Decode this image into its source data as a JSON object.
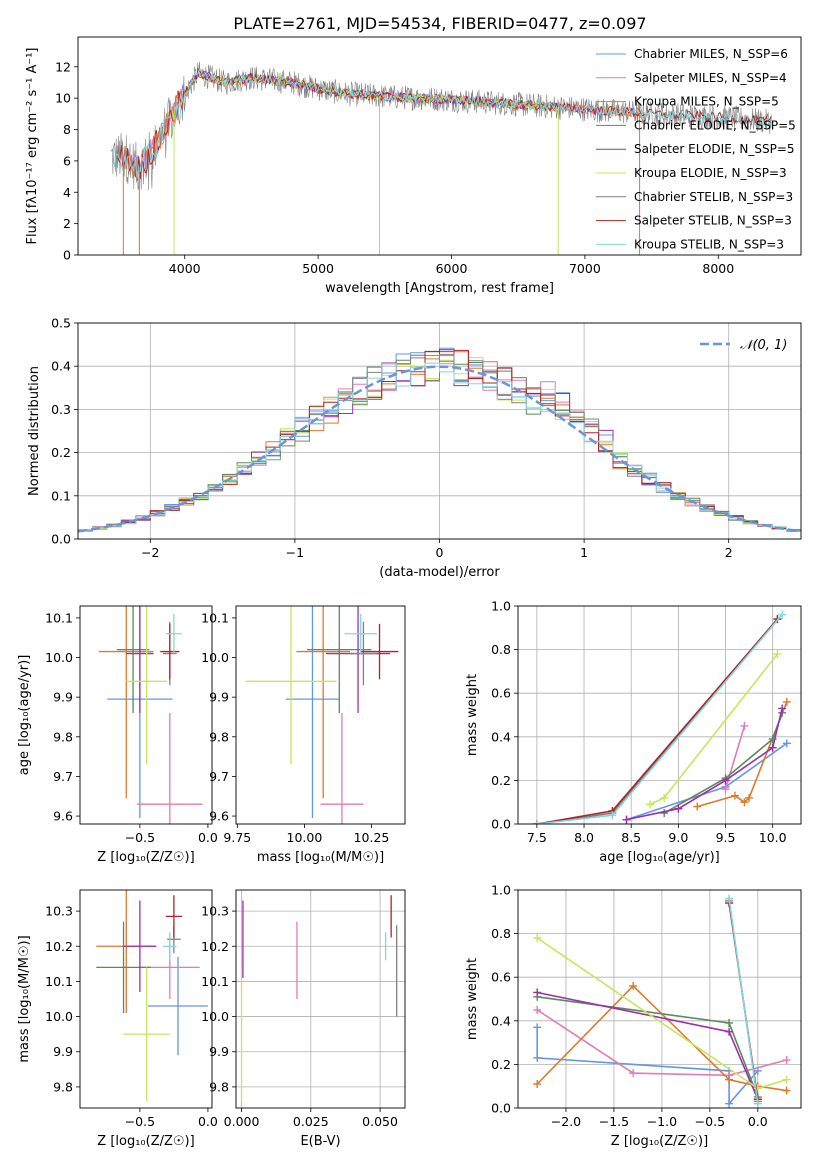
{
  "figure_title": "PLATE=2761, MJD=54534, FIBERID=0477, z=0.097",
  "colors": {
    "chabrier_miles": "#6495ed",
    "salpeter_miles": "#e57ab8",
    "kroupa_miles": "#e0782a",
    "chabrier_elodie": "#5a8a5a",
    "salpeter_elodie": "#9b2fae",
    "kroupa_elodie": "#c7e65a",
    "chabrier_stelib": "#808080",
    "salpeter_stelib": "#b22222",
    "kroupa_stelib": "#7fd8e0",
    "normal": "#6a96d8",
    "grid": "#b0b0b0"
  },
  "chart_data": [
    {
      "id": "spectrum",
      "type": "line",
      "title": "PLATE=2761, MJD=54534, FIBERID=0477, z=0.097",
      "xlabel": "wavelength [Angstrom, rest frame]",
      "ylabel": "Flux [fλ10⁻¹⁷ erg cm⁻² s⁻¹ A⁻¹]",
      "xlim": [
        3200,
        8620
      ],
      "ylim": [
        0,
        13.9
      ],
      "xticks": [
        "4000",
        "5000",
        "6000",
        "7000",
        "8000"
      ],
      "yticks": [
        "0",
        "2",
        "4",
        "6",
        "8",
        "10",
        "12"
      ],
      "xtick_values": [
        4000,
        5000,
        6000,
        7000,
        8000
      ],
      "ytick_values": [
        0,
        2,
        4,
        6,
        8,
        10,
        12
      ],
      "legend_position": "upper right",
      "series": [
        {
          "name": "Chabrier MILES, N_SSP=6",
          "key": "chabrier_miles"
        },
        {
          "name": "Salpeter MILES, N_SSP=4",
          "key": "salpeter_miles"
        },
        {
          "name": "Kroupa MILES, N_SSP=5",
          "key": "kroupa_miles"
        },
        {
          "name": "Chabrier ELODIE, N_SSP=5",
          "key": "chabrier_elodie"
        },
        {
          "name": "Salpeter ELODIE, N_SSP=5",
          "key": "salpeter_elodie"
        },
        {
          "name": "Kroupa ELODIE, N_SSP=3",
          "key": "kroupa_elodie"
        },
        {
          "name": "Chabrier STELIB, N_SSP=3",
          "key": "chabrier_stelib"
        },
        {
          "name": "Salpeter STELIB, N_SSP=3",
          "key": "salpeter_stelib"
        },
        {
          "name": "Kroupa STELIB, N_SSP=3",
          "key": "kroupa_stelib"
        }
      ],
      "envelope": [
        [
          3450,
          6.2
        ],
        [
          3550,
          6.3
        ],
        [
          3650,
          5.5
        ],
        [
          3750,
          6.5
        ],
        [
          3850,
          8.0
        ],
        [
          3950,
          9.5
        ],
        [
          4000,
          10.2
        ],
        [
          4100,
          11.6
        ],
        [
          4300,
          11.0
        ],
        [
          4500,
          11.3
        ],
        [
          4800,
          11.0
        ],
        [
          5000,
          10.6
        ],
        [
          5200,
          10.3
        ],
        [
          5500,
          10.1
        ],
        [
          6000,
          9.9
        ],
        [
          6500,
          9.6
        ],
        [
          7000,
          9.3
        ],
        [
          7500,
          9.0
        ],
        [
          8000,
          8.8
        ],
        [
          8400,
          8.5
        ]
      ]
    },
    {
      "id": "residuals",
      "type": "histogram",
      "xlabel": "(data-model)/error",
      "ylabel": "Normed distribution",
      "xlim": [
        -2.5,
        2.5
      ],
      "ylim": [
        0,
        0.5
      ],
      "xticks": [
        "−2",
        "−1",
        "0",
        "1",
        "2"
      ],
      "yticks": [
        "0.0",
        "0.1",
        "0.2",
        "0.3",
        "0.4",
        "0.5"
      ],
      "xtick_values": [
        -2,
        -1,
        0,
        1,
        2
      ],
      "ytick_values": [
        0,
        0.1,
        0.2,
        0.3,
        0.4,
        0.5
      ],
      "legend": "𝒩(0, 1)",
      "legend_position": "upper right",
      "bin_width": 0.1
    },
    {
      "id": "age_vs_z",
      "type": "errorbar",
      "xlabel": "Z [log₁₀(Z/Z☉)]",
      "ylabel": "age  [log₁₀(age/yr)]",
      "xlim": [
        -0.94,
        0.03
      ],
      "ylim": [
        9.58,
        10.13
      ],
      "xticks": [
        "−0.5",
        "0.0"
      ],
      "yticks": [
        "9.6",
        "9.7",
        "9.8",
        "9.9",
        "10.0",
        "10.1"
      ],
      "xtick_values": [
        -0.5,
        0.0
      ],
      "ytick_values": [
        9.6,
        9.7,
        9.8,
        9.9,
        10.0,
        10.1
      ],
      "points": [
        {
          "key": "chabrier_miles",
          "x": -0.5,
          "xerr": 0.24,
          "y": 9.895,
          "yerr": 0.3
        },
        {
          "key": "salpeter_miles",
          "x": -0.28,
          "xerr": 0.24,
          "y": 9.63,
          "yerr": 0.23
        },
        {
          "key": "kroupa_miles",
          "x": -0.6,
          "xerr": 0.2,
          "y": 10.015,
          "yerr": 0.37
        },
        {
          "key": "chabrier_elodie",
          "x": -0.55,
          "xerr": 0.12,
          "y": 10.02,
          "yerr": 0.16
        },
        {
          "key": "salpeter_elodie",
          "x": -0.5,
          "xerr": 0.1,
          "y": 10.01,
          "yerr": 0.15
        },
        {
          "key": "kroupa_elodie",
          "x": -0.45,
          "xerr": 0.15,
          "y": 9.94,
          "yerr": 0.21
        },
        {
          "key": "chabrier_stelib",
          "x": -0.28,
          "xerr": 0.05,
          "y": 10.01,
          "yerr": 0.08
        },
        {
          "key": "salpeter_stelib",
          "x": -0.28,
          "xerr": 0.07,
          "y": 10.015,
          "yerr": 0.07
        },
        {
          "key": "kroupa_stelib",
          "x": -0.25,
          "xerr": 0.06,
          "y": 10.06,
          "yerr": 0.05
        }
      ]
    },
    {
      "id": "age_vs_mass",
      "type": "errorbar",
      "xlabel": "mass [log₁₀(M/M☉)]",
      "ylabel": "",
      "xlim": [
        9.745,
        10.375
      ],
      "ylim": [
        9.58,
        10.13
      ],
      "xticks": [
        "9.75",
        "10.00",
        "10.25"
      ],
      "yticks": [
        "9.6",
        "9.7",
        "9.8",
        "9.9",
        "10.0",
        "10.1"
      ],
      "xtick_values": [
        9.75,
        10.0,
        10.25
      ],
      "ytick_values": [
        9.6,
        9.7,
        9.8,
        9.9,
        10.0,
        10.1
      ],
      "points": [
        {
          "key": "chabrier_miles",
          "x": 10.03,
          "xerr": 0.1,
          "y": 9.895,
          "yerr": 0.3
        },
        {
          "key": "salpeter_miles",
          "x": 10.14,
          "xerr": 0.08,
          "y": 9.63,
          "yerr": 0.23
        },
        {
          "key": "kroupa_miles",
          "x": 10.07,
          "xerr": 0.1,
          "y": 10.015,
          "yerr": 0.37
        },
        {
          "key": "chabrier_elodie",
          "x": 10.13,
          "xerr": 0.12,
          "y": 10.02,
          "yerr": 0.16
        },
        {
          "key": "salpeter_elodie",
          "x": 10.2,
          "xerr": 0.12,
          "y": 10.01,
          "yerr": 0.15
        },
        {
          "key": "kroupa_elodie",
          "x": 9.95,
          "xerr": 0.17,
          "y": 9.94,
          "yerr": 0.21
        },
        {
          "key": "chabrier_stelib",
          "x": 10.22,
          "xerr": 0.05,
          "y": 10.01,
          "yerr": 0.08
        },
        {
          "key": "salpeter_stelib",
          "x": 10.28,
          "xerr": 0.07,
          "y": 10.015,
          "yerr": 0.07
        },
        {
          "key": "kroupa_stelib",
          "x": 10.21,
          "xerr": 0.06,
          "y": 10.06,
          "yerr": 0.05
        }
      ]
    },
    {
      "id": "weight_vs_age",
      "type": "line",
      "xlabel": "age  [log₁₀(age/yr)]",
      "ylabel": "mass weight",
      "xlim": [
        7.3,
        10.3
      ],
      "ylim": [
        0,
        1.0
      ],
      "xticks": [
        "7.5",
        "8.0",
        "8.5",
        "9.0",
        "9.5",
        "10.0"
      ],
      "yticks": [
        "0.0",
        "0.2",
        "0.4",
        "0.6",
        "0.8",
        "1.0"
      ],
      "xtick_values": [
        7.5,
        8.0,
        8.5,
        9.0,
        9.5,
        10.0
      ],
      "ytick_values": [
        0,
        0.2,
        0.4,
        0.6,
        0.8,
        1.0
      ],
      "series": [
        {
          "key": "chabrier_miles",
          "points": [
            [
              8.45,
              0.02
            ],
            [
              9.5,
              0.17
            ],
            [
              10.15,
              0.37
            ]
          ]
        },
        {
          "key": "salpeter_miles",
          "points": [
            [
              9.5,
              0.16
            ],
            [
              9.7,
              0.45
            ]
          ]
        },
        {
          "key": "kroupa_miles",
          "points": [
            [
              9.2,
              0.08
            ],
            [
              9.6,
              0.13
            ],
            [
              9.7,
              0.1
            ],
            [
              9.75,
              0.12
            ],
            [
              10.15,
              0.56
            ]
          ]
        },
        {
          "key": "chabrier_elodie",
          "points": [
            [
              8.85,
              0.05
            ],
            [
              9.5,
              0.21
            ],
            [
              10.0,
              0.39
            ],
            [
              10.1,
              0.51
            ]
          ]
        },
        {
          "key": "salpeter_elodie",
          "points": [
            [
              8.45,
              0.02
            ],
            [
              9.0,
              0.07
            ],
            [
              9.5,
              0.2
            ],
            [
              10.0,
              0.35
            ],
            [
              10.1,
              0.53
            ]
          ]
        },
        {
          "key": "kroupa_elodie",
          "points": [
            [
              8.7,
              0.09
            ],
            [
              8.85,
              0.12
            ],
            [
              10.05,
              0.78
            ]
          ]
        },
        {
          "key": "chabrier_stelib",
          "points": [
            [
              7.5,
              0.0
            ],
            [
              8.3,
              0.05
            ],
            [
              10.05,
              0.94
            ]
          ]
        },
        {
          "key": "salpeter_stelib",
          "points": [
            [
              7.5,
              0.0
            ],
            [
              8.3,
              0.06
            ],
            [
              10.05,
              0.94
            ]
          ]
        },
        {
          "key": "kroupa_stelib",
          "points": [
            [
              7.5,
              0.0
            ],
            [
              8.3,
              0.04
            ],
            [
              10.1,
              0.96
            ]
          ]
        }
      ]
    },
    {
      "id": "mass_vs_z",
      "type": "errorbar",
      "xlabel": "Z [log₁₀(Z/Z☉)]",
      "ylabel": "mass [log₁₀(M/M☉)]",
      "xlim": [
        -0.94,
        0.03
      ],
      "ylim": [
        9.74,
        10.36
      ],
      "xticks": [
        "−0.5",
        "0.0"
      ],
      "yticks": [
        "9.8",
        "9.9",
        "10.0",
        "10.1",
        "10.2",
        "10.3"
      ],
      "xtick_values": [
        -0.5,
        0.0
      ],
      "ytick_values": [
        9.8,
        9.9,
        10.0,
        10.1,
        10.2,
        10.3
      ],
      "points": [
        {
          "key": "chabrier_miles",
          "x": -0.22,
          "xerr": 0.22,
          "y": 10.03,
          "yerr": 0.14
        },
        {
          "key": "salpeter_miles",
          "x": -0.28,
          "xerr": 0.22,
          "y": 10.14,
          "yerr": 0.09
        },
        {
          "key": "kroupa_miles",
          "x": -0.6,
          "xerr": 0.22,
          "y": 10.2,
          "yerr": 0.19
        },
        {
          "key": "chabrier_elodie",
          "x": -0.62,
          "xerr": 0.2,
          "y": 10.14,
          "yerr": 0.13
        },
        {
          "key": "salpeter_elodie",
          "x": -0.5,
          "xerr": 0.12,
          "y": 10.2,
          "yerr": 0.13
        },
        {
          "key": "kroupa_elodie",
          "x": -0.45,
          "xerr": 0.17,
          "y": 9.95,
          "yerr": 0.19
        },
        {
          "key": "chabrier_stelib",
          "x": -0.25,
          "xerr": 0.05,
          "y": 10.22,
          "yerr": 0.04
        },
        {
          "key": "salpeter_stelib",
          "x": -0.25,
          "xerr": 0.06,
          "y": 10.285,
          "yerr": 0.06
        },
        {
          "key": "kroupa_stelib",
          "x": -0.28,
          "xerr": 0.05,
          "y": 10.2,
          "yerr": 0.04
        }
      ]
    },
    {
      "id": "mass_vs_ebv",
      "type": "errorbar",
      "xlabel": "E(B-V)",
      "ylabel": "",
      "xlim": [
        -0.002,
        0.059
      ],
      "ylim": [
        9.74,
        10.36
      ],
      "xticks": [
        "0.000",
        "0.025",
        "0.050"
      ],
      "yticks": [
        "9.8",
        "9.9",
        "10.0",
        "10.1",
        "10.2",
        "10.3"
      ],
      "xtick_values": [
        0.0,
        0.025,
        0.05
      ],
      "ytick_values": [
        9.8,
        9.9,
        10.0,
        10.1,
        10.2,
        10.3
      ],
      "points": [
        {
          "key": "salpeter_miles",
          "x": 0.02,
          "xerr": 0,
          "y": 10.16,
          "yerr": 0.11
        },
        {
          "key": "kroupa_elodie",
          "x": 0.0,
          "xerr": 0,
          "y": 9.95,
          "yerr": 0.19
        },
        {
          "key": "salpeter_elodie",
          "x": 0.0005,
          "xerr": 0,
          "y": 10.22,
          "yerr": 0.11
        },
        {
          "key": "kroupa_stelib",
          "x": 0.052,
          "xerr": 0,
          "y": 10.2,
          "yerr": 0.04
        },
        {
          "key": "salpeter_stelib",
          "x": 0.054,
          "xerr": 0,
          "y": 10.285,
          "yerr": 0.06
        },
        {
          "key": "chabrier_stelib",
          "x": 0.056,
          "xerr": 0,
          "y": 10.13,
          "yerr": 0.13
        }
      ]
    },
    {
      "id": "weight_vs_z",
      "type": "line",
      "xlabel": "Z [log₁₀(Z/Z☉)]",
      "ylabel": "mass weight",
      "xlim": [
        -2.5,
        0.45
      ],
      "ylim": [
        0,
        1.0
      ],
      "xticks": [
        "−2.0",
        "−1.5",
        "−1.0",
        "−0.5",
        "0.0"
      ],
      "yticks": [
        "0.0",
        "0.2",
        "0.4",
        "0.6",
        "0.8",
        "1.0"
      ],
      "xtick_values": [
        -2.0,
        -1.5,
        -1.0,
        -0.5,
        0.0
      ],
      "ytick_values": [
        0,
        0.2,
        0.4,
        0.6,
        0.8,
        1.0
      ],
      "series": [
        {
          "key": "chabrier_miles",
          "points": [
            [
              -2.3,
              0.37
            ],
            [
              -2.3,
              0.23
            ],
            [
              -0.3,
              0.17
            ],
            [
              -0.3,
              0.02
            ],
            [
              0.0,
              0.17
            ]
          ]
        },
        {
          "key": "salpeter_miles",
          "points": [
            [
              -2.3,
              0.45
            ],
            [
              -1.3,
              0.16
            ],
            [
              -0.3,
              0.15
            ],
            [
              0.3,
              0.22
            ]
          ]
        },
        {
          "key": "kroupa_miles",
          "points": [
            [
              -2.3,
              0.11
            ],
            [
              -1.3,
              0.56
            ],
            [
              -0.3,
              0.13
            ],
            [
              0.0,
              0.1
            ],
            [
              0.3,
              0.08
            ]
          ]
        },
        {
          "key": "chabrier_elodie",
          "points": [
            [
              -2.3,
              0.51
            ],
            [
              -0.3,
              0.39
            ],
            [
              0.0,
              0.05
            ]
          ]
        },
        {
          "key": "salpeter_elodie",
          "points": [
            [
              -2.3,
              0.53
            ],
            [
              -0.3,
              0.35
            ],
            [
              0.0,
              0.04
            ]
          ]
        },
        {
          "key": "kroupa_elodie",
          "points": [
            [
              -2.3,
              0.78
            ],
            [
              0.0,
              0.09
            ],
            [
              0.3,
              0.13
            ]
          ]
        },
        {
          "key": "chabrier_stelib",
          "points": [
            [
              -0.3,
              0.95
            ],
            [
              0.0,
              0.03
            ]
          ]
        },
        {
          "key": "salpeter_stelib",
          "points": [
            [
              -0.3,
              0.94
            ],
            [
              0.0,
              0.04
            ]
          ]
        },
        {
          "key": "kroupa_stelib",
          "points": [
            [
              -0.3,
              0.96
            ],
            [
              0.0,
              0.02
            ]
          ]
        }
      ]
    }
  ]
}
